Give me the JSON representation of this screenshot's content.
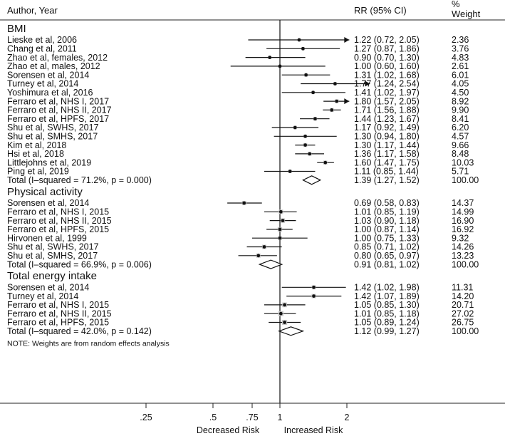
{
  "chart_data": {
    "type": "forest",
    "headers": {
      "study": "Author, Year",
      "estimate": "RR (95% CI)",
      "weight_line1": "%",
      "weight_line2": "Weight"
    },
    "x_scale": "log",
    "xlim": [
      0.18,
      2.6
    ],
    "x_ticks": [
      ".25",
      ".5",
      ".75",
      "1",
      "2"
    ],
    "x_tick_values": [
      0.25,
      0.5,
      0.75,
      1,
      2
    ],
    "left_label": "Decreased Risk",
    "right_label": "Increased Risk",
    "note": "NOTE: Weights are from random effects analysis",
    "groups": [
      {
        "name": "BMI",
        "studies": [
          {
            "label": "Lieske et al, 2006",
            "rr": 1.22,
            "lo": 0.72,
            "hi": 2.05,
            "ci_text": "1.22 (0.72, 2.05)",
            "weight": "2.36",
            "arrow_right": true
          },
          {
            "label": "Chang et al, 2011",
            "rr": 1.27,
            "lo": 0.87,
            "hi": 1.86,
            "ci_text": "1.27 (0.87, 1.86)",
            "weight": "3.76"
          },
          {
            "label": "Zhao et al, females, 2012",
            "rr": 0.9,
            "lo": 0.7,
            "hi": 1.3,
            "ci_text": "0.90 (0.70, 1.30)",
            "weight": "4.83"
          },
          {
            "label": "Zhao et al, males, 2012",
            "rr": 1.0,
            "lo": 0.6,
            "hi": 1.6,
            "ci_text": "1.00 (0.60, 1.60)",
            "weight": "2.61"
          },
          {
            "label": "Sorensen et al, 2014",
            "rr": 1.31,
            "lo": 1.02,
            "hi": 1.68,
            "ci_text": "1.31 (1.02, 1.68)",
            "weight": "6.01"
          },
          {
            "label": "Turney et al, 2014",
            "rr": 1.77,
            "lo": 1.24,
            "hi": 2.54,
            "ci_text": "1.77 (1.24, 2.54)",
            "weight": "4.05",
            "arrow_right": true
          },
          {
            "label": "Yoshimura et al, 2016",
            "rr": 1.41,
            "lo": 1.02,
            "hi": 1.97,
            "ci_text": "1.41 (1.02, 1.97)",
            "weight": "4.50"
          },
          {
            "label": "Ferraro et al, NHS I, 2017",
            "rr": 1.8,
            "lo": 1.57,
            "hi": 2.05,
            "ci_text": "1.80 (1.57, 2.05)",
            "weight": "8.92",
            "arrow_right": true
          },
          {
            "label": "Ferraro et al, NHS II, 2017",
            "rr": 1.71,
            "lo": 1.56,
            "hi": 1.88,
            "ci_text": "1.71 (1.56, 1.88)",
            "weight": "9.90"
          },
          {
            "label": "Ferraro et al, HPFS, 2017",
            "rr": 1.44,
            "lo": 1.23,
            "hi": 1.67,
            "ci_text": "1.44 (1.23, 1.67)",
            "weight": "8.41"
          },
          {
            "label": "Shu et al, SWHS, 2017",
            "rr": 1.17,
            "lo": 0.92,
            "hi": 1.49,
            "ci_text": "1.17 (0.92, 1.49)",
            "weight": "6.20"
          },
          {
            "label": "Shu et al, SMHS, 2017",
            "rr": 1.3,
            "lo": 0.94,
            "hi": 1.8,
            "ci_text": "1.30 (0.94, 1.80)",
            "weight": "4.57"
          },
          {
            "label": "Kim et al, 2018",
            "rr": 1.3,
            "lo": 1.17,
            "hi": 1.44,
            "ci_text": "1.30 (1.17, 1.44)",
            "weight": "9.66"
          },
          {
            "label": "Hsi et al, 2018",
            "rr": 1.36,
            "lo": 1.17,
            "hi": 1.58,
            "ci_text": "1.36 (1.17, 1.58)",
            "weight": "8.48"
          },
          {
            "label": "Littlejohns et al, 2019",
            "rr": 1.6,
            "lo": 1.47,
            "hi": 1.75,
            "ci_text": "1.60 (1.47, 1.75)",
            "weight": "10.03"
          },
          {
            "label": "Ping et al, 2019",
            "rr": 1.11,
            "lo": 0.85,
            "hi": 1.44,
            "ci_text": "1.11 (0.85, 1.44)",
            "weight": "5.71"
          }
        ],
        "total": {
          "label": "Total  (I–squared = 71.2%, p = 0.000)",
          "rr": 1.39,
          "lo": 1.27,
          "hi": 1.52,
          "ci_text": "1.39 (1.27, 1.52)",
          "weight": "100.00"
        }
      },
      {
        "name": "Physical activity",
        "studies": [
          {
            "label": "Sorensen et al, 2014",
            "rr": 0.69,
            "lo": 0.58,
            "hi": 0.83,
            "ci_text": "0.69 (0.58, 0.83)",
            "weight": "14.37"
          },
          {
            "label": "Ferraro et al, NHS I, 2015",
            "rr": 1.01,
            "lo": 0.85,
            "hi": 1.19,
            "ci_text": "1.01 (0.85, 1.19)",
            "weight": "14.99"
          },
          {
            "label": "Ferraro et al, NHS II, 2015",
            "rr": 1.03,
            "lo": 0.9,
            "hi": 1.18,
            "ci_text": "1.03 (0.90, 1.18)",
            "weight": "16.90"
          },
          {
            "label": "Ferraro et al, HPFS, 2015",
            "rr": 1.0,
            "lo": 0.87,
            "hi": 1.14,
            "ci_text": "1.00 (0.87, 1.14)",
            "weight": "16.92"
          },
          {
            "label": "Hirvonen et al, 1999",
            "rr": 1.0,
            "lo": 0.75,
            "hi": 1.33,
            "ci_text": "1.00 (0.75, 1.33)",
            "weight": "9.32"
          },
          {
            "label": "Shu et al, SWHS, 2017",
            "rr": 0.85,
            "lo": 0.71,
            "hi": 1.02,
            "ci_text": "0.85 (0.71, 1.02)",
            "weight": "14.26"
          },
          {
            "label": "Shu et al, SMHS, 2017",
            "rr": 0.8,
            "lo": 0.65,
            "hi": 0.97,
            "ci_text": "0.80 (0.65, 0.97)",
            "weight": "13.23"
          }
        ],
        "total": {
          "label": "Total  (I–squared = 66.9%, p = 0.006)",
          "rr": 0.91,
          "lo": 0.81,
          "hi": 1.02,
          "ci_text": "0.91 (0.81, 1.02)",
          "weight": "100.00"
        }
      },
      {
        "name": "Total energy intake",
        "studies": [
          {
            "label": "Sorensen et al, 2014",
            "rr": 1.42,
            "lo": 1.02,
            "hi": 1.98,
            "ci_text": "1.42 (1.02, 1.98)",
            "weight": "11.31"
          },
          {
            "label": "Turney et al, 2014",
            "rr": 1.42,
            "lo": 1.07,
            "hi": 1.89,
            "ci_text": "1.42 (1.07, 1.89)",
            "weight": "14.20"
          },
          {
            "label": "Ferraro et al, NHS I, 2015",
            "rr": 1.05,
            "lo": 0.85,
            "hi": 1.3,
            "ci_text": "1.05 (0.85, 1.30)",
            "weight": "20.71"
          },
          {
            "label": "Ferraro et al, NHS II, 2015",
            "rr": 1.01,
            "lo": 0.85,
            "hi": 1.18,
            "ci_text": "1.01 (0.85, 1.18)",
            "weight": "27.02"
          },
          {
            "label": "Ferraro et al, HPFS, 2015",
            "rr": 1.05,
            "lo": 0.89,
            "hi": 1.24,
            "ci_text": "1.05 (0.89, 1.24)",
            "weight": "26.75"
          }
        ],
        "total": {
          "label": "Total  (I–squared = 42.0%, p = 0.142)",
          "rr": 1.12,
          "lo": 0.99,
          "hi": 1.27,
          "ci_text": "1.12 (0.99, 1.27)",
          "weight": "100.00"
        }
      }
    ]
  }
}
